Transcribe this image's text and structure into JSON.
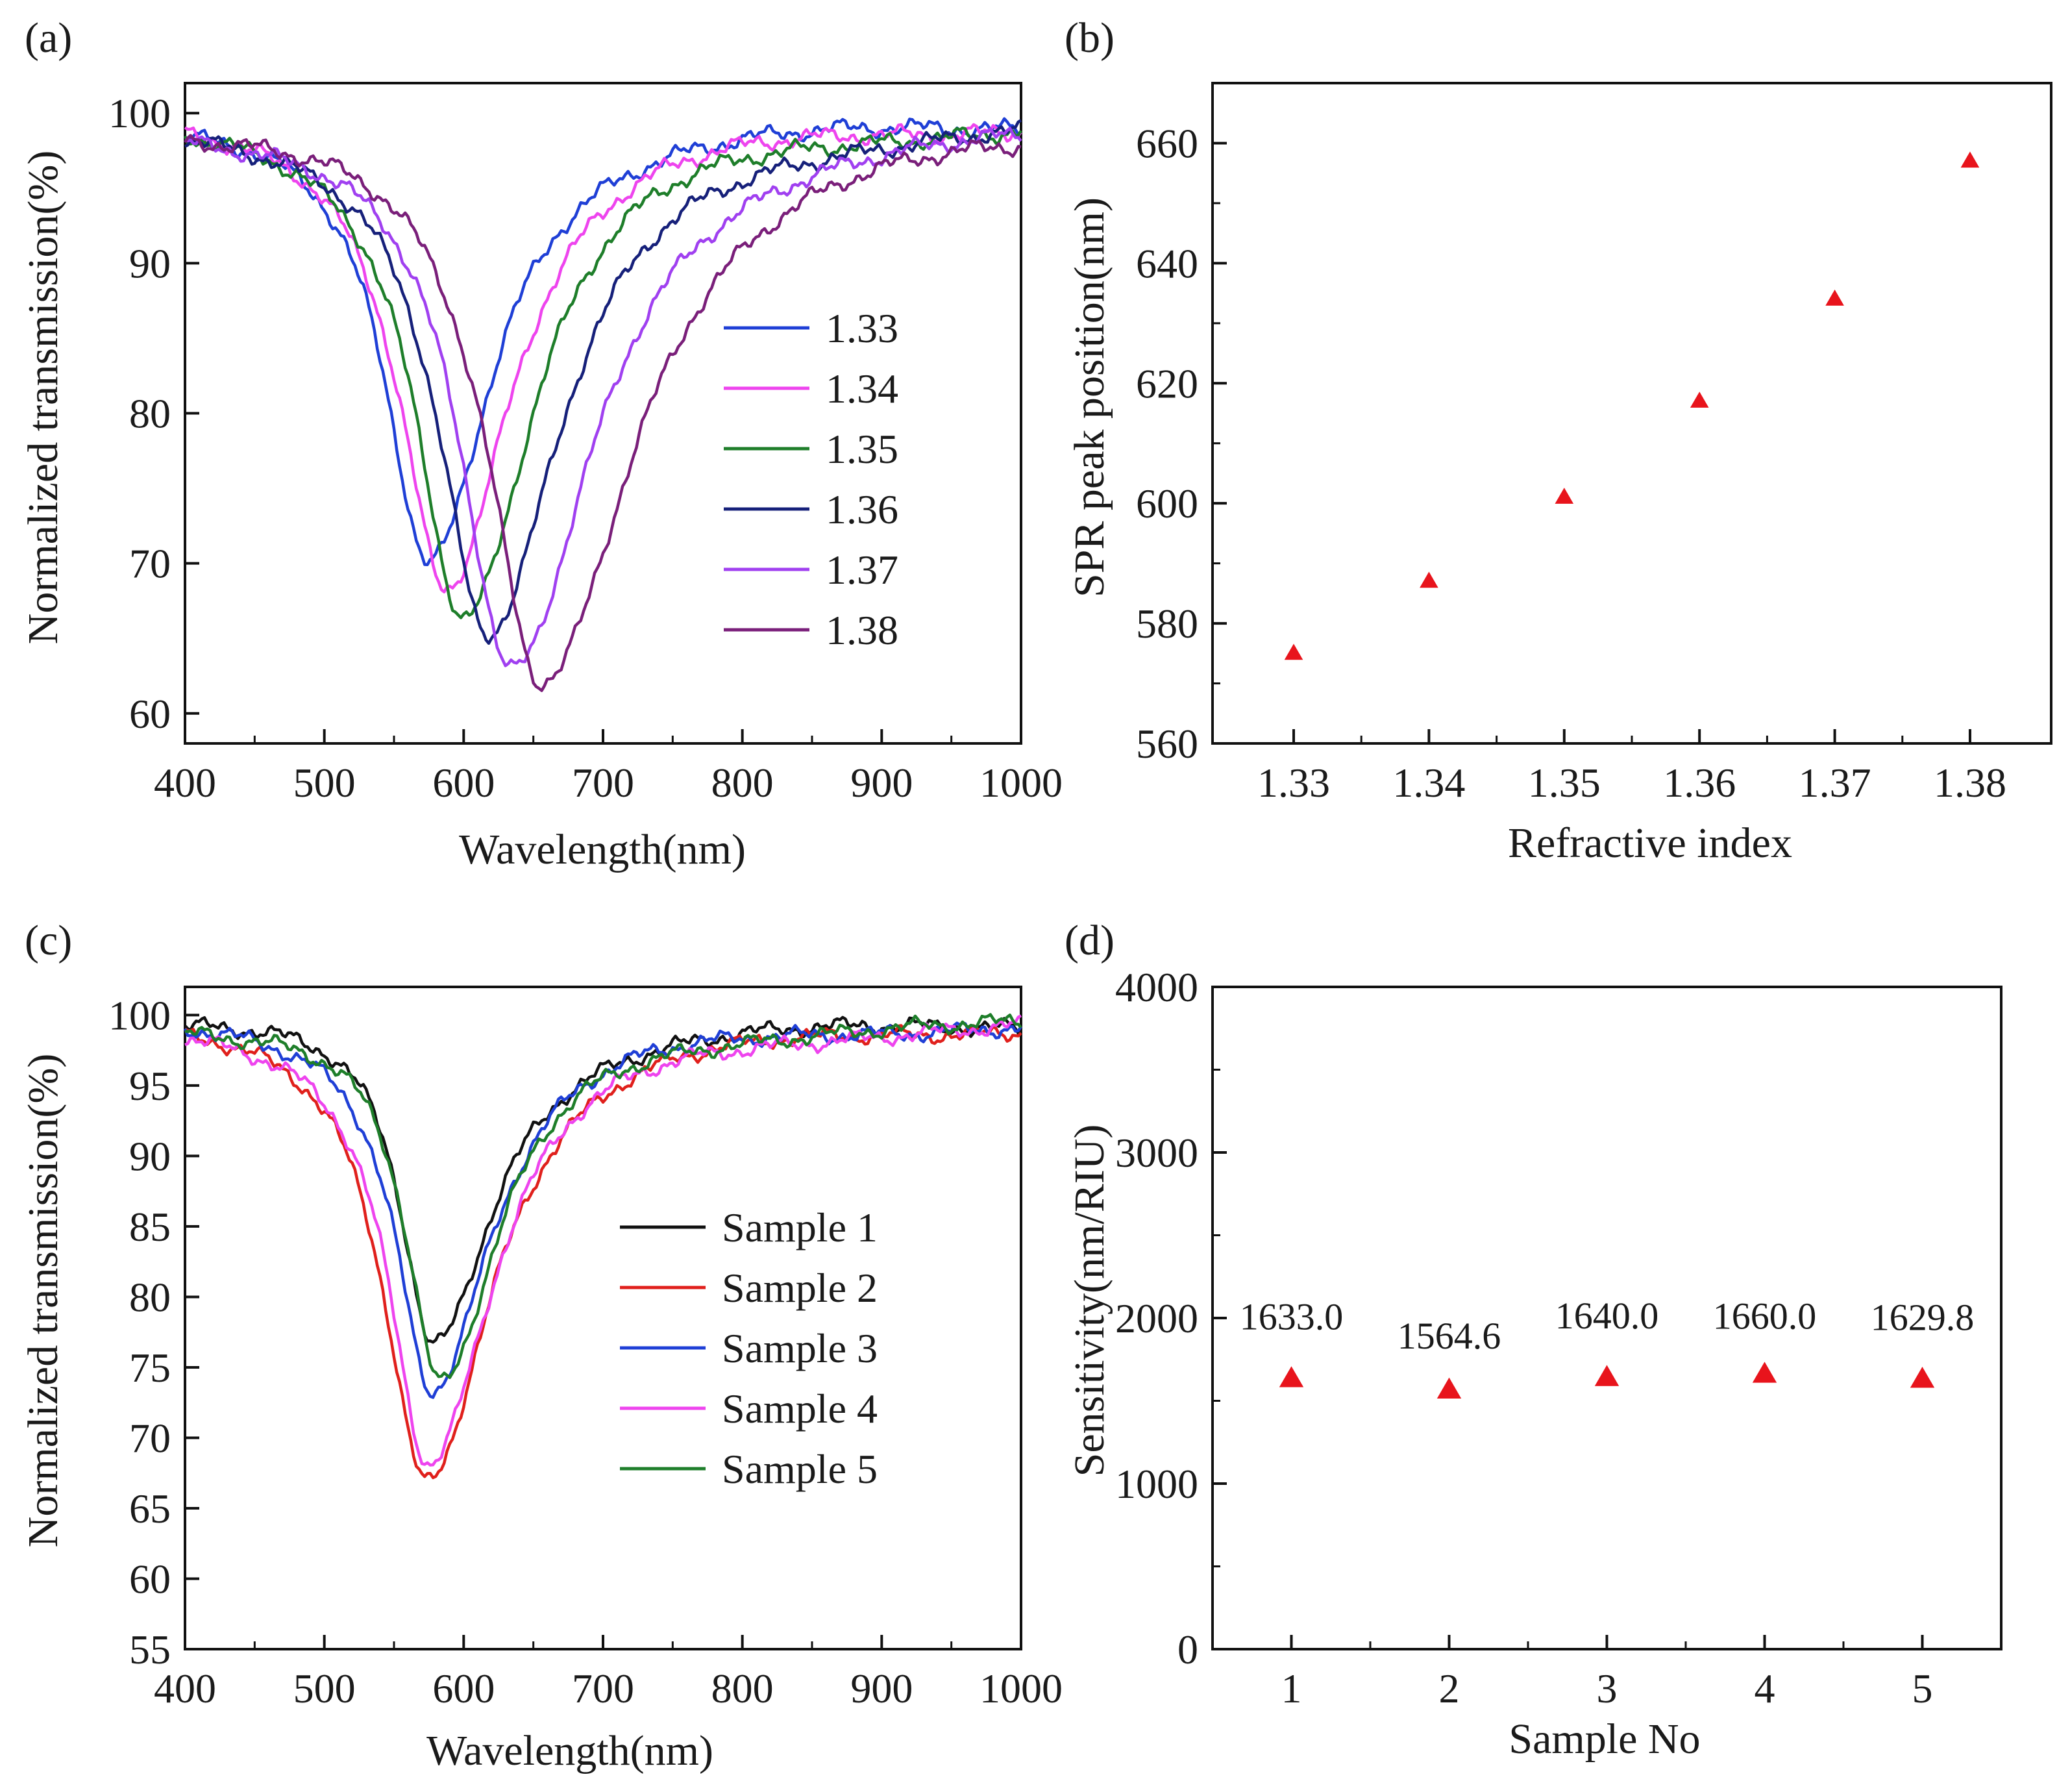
{
  "chart_data": [
    {
      "panel": "(a)",
      "type": "line",
      "xlabel": "Wavelength(nm)",
      "ylabel": "Normalized transmission(%)",
      "xlim": [
        400,
        1000
      ],
      "ylim": [
        58,
        102
      ],
      "xticks": [
        400,
        500,
        600,
        700,
        800,
        900,
        1000
      ],
      "yticks": [
        60,
        70,
        80,
        90,
        100
      ],
      "legend_position": "center-right",
      "grid": false,
      "series": [
        {
          "name": "1.33",
          "color": "#1f3fd6",
          "dip_x": 575,
          "dip_y": 70.5,
          "width": 42,
          "recovery": 58
        },
        {
          "name": "1.34",
          "color": "#ee44ee",
          "dip_x": 587,
          "dip_y": 69.0,
          "width": 44,
          "recovery": 62
        },
        {
          "name": "1.35",
          "color": "#1e7e2a",
          "dip_x": 600,
          "dip_y": 66.8,
          "width": 45,
          "recovery": 66
        },
        {
          "name": "1.36",
          "color": "#16207a",
          "dip_x": 617,
          "dip_y": 65.5,
          "width": 47,
          "recovery": 72
        },
        {
          "name": "1.37",
          "color": "#a040f0",
          "dip_x": 634,
          "dip_y": 63.0,
          "width": 49,
          "recovery": 78
        },
        {
          "name": "1.38",
          "color": "#7a1f7a",
          "dip_x": 656,
          "dip_y": 62.5,
          "width": 52,
          "recovery": 86
        }
      ]
    },
    {
      "panel": "(b)",
      "type": "scatter",
      "xlabel": "Refractive index",
      "ylabel": "SPR peak position(nm)",
      "xlim": [
        1.324,
        1.386
      ],
      "ylim": [
        560,
        670
      ],
      "xticks": [
        1.33,
        1.34,
        1.35,
        1.36,
        1.37,
        1.38
      ],
      "xtick_labels": [
        "1.33",
        "1.34",
        "1.35",
        "1.36",
        "1.37",
        "1.38"
      ],
      "yticks": [
        560,
        580,
        600,
        620,
        640,
        660
      ],
      "grid": false,
      "marker": "triangle",
      "color": "#e8141c",
      "x": [
        1.33,
        1.34,
        1.35,
        1.36,
        1.37,
        1.38
      ],
      "y": [
        575,
        587,
        601,
        617,
        634,
        657
      ]
    },
    {
      "panel": "(c)",
      "type": "line",
      "xlabel": "Wavelength(nm)",
      "ylabel": "Normalized transmission(%)",
      "xlim": [
        400,
        1000
      ],
      "ylim": [
        55,
        102
      ],
      "xticks": [
        400,
        500,
        600,
        700,
        800,
        900,
        1000
      ],
      "yticks": [
        55,
        60,
        65,
        70,
        75,
        80,
        85,
        90,
        95,
        100
      ],
      "legend_position": "center-right",
      "grid": false,
      "series": [
        {
          "name": "Sample 1",
          "color": "#111111",
          "dip_x": 578,
          "dip_y": 77.0,
          "width": 30,
          "recovery": 55
        },
        {
          "name": "Sample 2",
          "color": "#e0201c",
          "dip_x": 573,
          "dip_y": 67.5,
          "width": 40,
          "recovery": 62
        },
        {
          "name": "Sample 3",
          "color": "#1f3fd6",
          "dip_x": 577,
          "dip_y": 74.0,
          "width": 34,
          "recovery": 57
        },
        {
          "name": "Sample 4",
          "color": "#ee44ee",
          "dip_x": 575,
          "dip_y": 68.5,
          "width": 38,
          "recovery": 62
        },
        {
          "name": "Sample 5",
          "color": "#1e7e2a",
          "dip_x": 583,
          "dip_y": 74.0,
          "width": 32,
          "recovery": 56
        }
      ]
    },
    {
      "panel": "(d)",
      "type": "scatter",
      "xlabel": "Sample No",
      "ylabel": "Sensitivity(nm/RIU)",
      "xlim": [
        0.5,
        5.5
      ],
      "ylim": [
        0,
        4000
      ],
      "xticks": [
        1,
        2,
        3,
        4,
        5
      ],
      "yticks": [
        0,
        1000,
        2000,
        3000,
        4000
      ],
      "grid": false,
      "marker": "triangle",
      "color": "#e8141c",
      "x": [
        1,
        2,
        3,
        4,
        5
      ],
      "y": [
        1633.0,
        1564.6,
        1640.0,
        1660.0,
        1629.8
      ],
      "annotations": [
        "1633.0",
        "1564.6",
        "1640.0",
        "1660.0",
        "1629.8"
      ]
    }
  ]
}
